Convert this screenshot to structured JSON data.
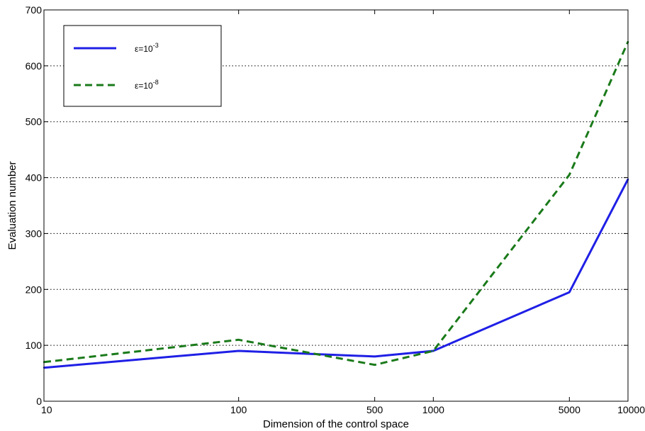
{
  "chart_data": {
    "type": "line",
    "title": "",
    "xlabel": "Dimension of the control space",
    "ylabel": "Evaluation number",
    "xscale": "log",
    "xlim": [
      10,
      10000
    ],
    "ylim": [
      0,
      700
    ],
    "xticks": [
      10,
      100,
      500,
      1000,
      5000,
      10000
    ],
    "xtick_labels": [
      "10",
      "100",
      "500",
      "1000",
      "5000",
      "10000"
    ],
    "yticks": [
      0,
      100,
      200,
      300,
      400,
      500,
      600,
      700
    ],
    "ytick_labels": [
      "0",
      "100",
      "200",
      "300",
      "400",
      "500",
      "600",
      "700"
    ],
    "grid": "horizontal dotted",
    "legend_position": "top-left",
    "x": [
      10,
      100,
      500,
      1000,
      5000,
      10000
    ],
    "series": [
      {
        "legend_base": "ε=10",
        "legend_exp": "-3",
        "values": [
          60,
          90,
          80,
          90,
          195,
          397
        ],
        "color": "#1f1fe6",
        "style": "solid"
      },
      {
        "legend_base": "ε=10",
        "legend_exp": "-8",
        "values": [
          70,
          110,
          65,
          90,
          405,
          643
        ],
        "color": "#1a7a1a",
        "style": "dashed"
      }
    ]
  }
}
